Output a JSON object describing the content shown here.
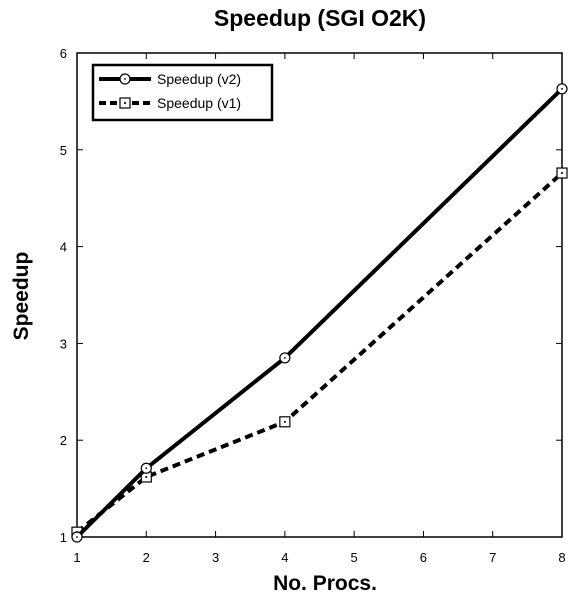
{
  "chart_data": {
    "type": "line",
    "title": "Speedup (SGI O2K)",
    "xlabel": "No. Procs.",
    "ylabel": "Speedup",
    "x": [
      1,
      2,
      4,
      8
    ],
    "xticks": [
      "1",
      "2",
      "3",
      "4",
      "5",
      "6",
      "7",
      "8"
    ],
    "yticks": [
      "1",
      "2",
      "3",
      "4",
      "5",
      "6"
    ],
    "xlim": [
      1,
      8
    ],
    "ylim": [
      1,
      6
    ],
    "grid": false,
    "legend_position": "top-left",
    "series": [
      {
        "name": "Speedup (v2)",
        "values": [
          1.0,
          1.71,
          2.85,
          5.63
        ],
        "line_style": "solid",
        "marker": "circle",
        "color": "#000000"
      },
      {
        "name": "Speedup (v1)",
        "values": [
          1.05,
          1.62,
          2.19,
          4.76
        ],
        "line_style": "dashed",
        "marker": "square",
        "color": "#000000"
      }
    ]
  }
}
